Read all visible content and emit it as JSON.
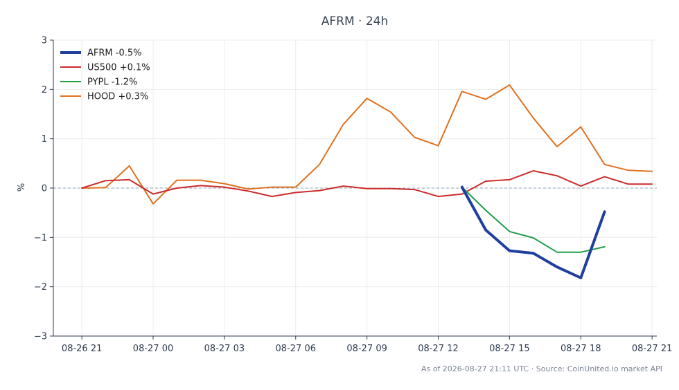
{
  "chart_data": {
    "type": "line",
    "title": "AFRM · 24h",
    "ylabel": "%",
    "xlabel": "",
    "ylim": [
      -3,
      3
    ],
    "yticks": [
      -3,
      -2,
      -1,
      0,
      1,
      2,
      3
    ],
    "ytick_labels": [
      "−3",
      "−2",
      "−1",
      "0",
      "1",
      "2",
      "3"
    ],
    "xlim": [
      -1.2,
      24.2
    ],
    "xticks": [
      0,
      3,
      6,
      9,
      12,
      15,
      18,
      21,
      24
    ],
    "xtick_labels": [
      "08-26 21",
      "08-27 00",
      "08-27 03",
      "08-27 06",
      "08-27 09",
      "08-27 12",
      "08-27 15",
      "08-27 18",
      "08-27 21"
    ],
    "grid": true,
    "zero_line": true,
    "legend_position": "top-left",
    "series": [
      {
        "name": "AFRM -0.5%",
        "color": "#1f3f9e",
        "width": 4,
        "x": [
          16,
          17,
          18,
          19,
          20,
          21,
          22
        ],
        "y": [
          0.02,
          -0.85,
          -1.27,
          -1.32,
          -1.6,
          -1.82,
          -0.48
        ]
      },
      {
        "name": "US500 +0.1%",
        "color": "#cc2a2a",
        "width": 2,
        "x": [
          0,
          1,
          2,
          3,
          4,
          5,
          6,
          7,
          8,
          9,
          10,
          11,
          12,
          13,
          14,
          15,
          16,
          17,
          18,
          19,
          20,
          21,
          22,
          23,
          24
        ],
        "y": [
          0.0,
          0.15,
          0.17,
          -0.12,
          0.0,
          0.05,
          0.02,
          -0.06,
          -0.17,
          -0.09,
          -0.05,
          0.04,
          -0.01,
          -0.01,
          -0.03,
          -0.17,
          -0.12,
          0.14,
          0.17,
          0.35,
          0.25,
          0.04,
          0.23,
          0.08,
          0.08
        ]
      },
      {
        "name": "PYPL -1.2%",
        "color": "#1f9e4a",
        "width": 2,
        "x": [
          16,
          17,
          18,
          19,
          20,
          21,
          22
        ],
        "y": [
          0.02,
          -0.45,
          -0.88,
          -1.01,
          -1.3,
          -1.3,
          -1.19
        ]
      },
      {
        "name": "HOOD +0.3%",
        "color": "#e0701e",
        "width": 2,
        "x": [
          0,
          1,
          2,
          3,
          4,
          5,
          6,
          7,
          8,
          9,
          10,
          11,
          12,
          13,
          14,
          15,
          16,
          17,
          18,
          19,
          20,
          21,
          22,
          23,
          24
        ],
        "y": [
          0.0,
          0.01,
          0.45,
          -0.32,
          0.16,
          0.16,
          0.09,
          -0.02,
          0.02,
          0.02,
          0.48,
          1.29,
          1.82,
          1.54,
          1.03,
          0.86,
          1.96,
          1.8,
          2.09,
          1.42,
          0.84,
          1.24,
          0.48,
          0.36,
          0.34
        ]
      }
    ]
  },
  "footer": "As of 2026-08-27 21:11 UTC · Source: CoinUnited.io market API"
}
